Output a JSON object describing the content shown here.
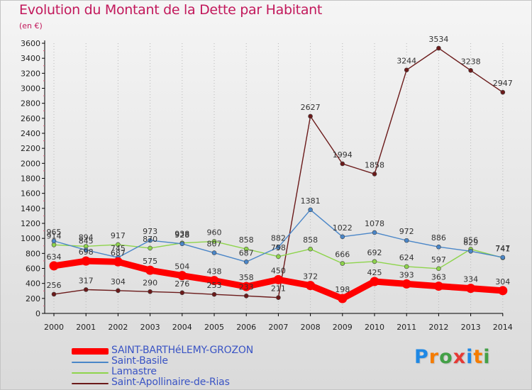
{
  "chart_data": {
    "type": "line",
    "title": "Evolution du Montant de la Dette par Habitant",
    "subtitle": "(en €)",
    "x": [
      "2000",
      "2001",
      "2002",
      "2003",
      "2004",
      "2005",
      "2006",
      "2007",
      "2008",
      "2009",
      "2010",
      "2011",
      "2012",
      "2013",
      "2014"
    ],
    "ylim": [
      0,
      3600
    ],
    "yticks": [
      0,
      200,
      400,
      600,
      800,
      1000,
      1200,
      1400,
      1600,
      1800,
      2000,
      2200,
      2400,
      2600,
      2800,
      3000,
      3200,
      3400,
      3600
    ],
    "grid": "vertical dotted",
    "legend_position": "bottom-left",
    "series": [
      {
        "name": "SAINT-BARTHéLEMY-GROZON",
        "color": "#ff0000",
        "values": [
          634,
          698,
          687,
          575,
          504,
          438,
          358,
          450,
          372,
          198,
          425,
          393,
          363,
          334,
          304
        ],
        "labels": [
          "634",
          "698",
          "687",
          "575",
          "504",
          "438",
          "358",
          "450",
          "372",
          "198",
          "425",
          "393",
          "363",
          "334",
          "304"
        ]
      },
      {
        "name": "Saint-Basile",
        "color": "#4a86c8",
        "values": [
          965,
          845,
          745,
          973,
          928,
          807,
          687,
          882,
          1381,
          1022,
          1078,
          972,
          886,
          829,
          747
        ],
        "labels": [
          "965",
          "845",
          "745",
          "973",
          "928",
          "807",
          "687",
          "882",
          "1381",
          "1022",
          "1078",
          "972",
          "886",
          "829",
          "747"
        ]
      },
      {
        "name": "Lamastre",
        "color": "#8ed44c",
        "values": [
          914,
          894,
          917,
          870,
          938,
          960,
          858,
          758,
          858,
          666,
          692,
          624,
          597,
          856,
          741
        ],
        "labels": [
          "914",
          "894",
          "917",
          "870",
          "938",
          "960",
          "858",
          "758",
          "858",
          "666",
          "692",
          "624",
          "597",
          "856",
          "741"
        ]
      },
      {
        "name": "Saint-Apollinaire-de-Rias",
        "color": "#6b1a1a",
        "values": [
          256,
          317,
          304,
          290,
          276,
          253,
          233,
          211,
          2627,
          1994,
          1858,
          3244,
          3534,
          3238,
          2947
        ],
        "labels": [
          "256",
          "317",
          "304",
          "290",
          "276",
          "253",
          "233",
          "211",
          "2627",
          "1994",
          "1858",
          "3244",
          "3534",
          "3238",
          "2947"
        ]
      }
    ]
  },
  "logo": {
    "letters": [
      "P",
      "r",
      "o",
      "x",
      "i",
      "t",
      "i"
    ],
    "colors": [
      "#1e88e5",
      "#f57c00",
      "#43a047",
      "#e53935",
      "#1e88e5",
      "#f57c00",
      "#43a047"
    ]
  }
}
